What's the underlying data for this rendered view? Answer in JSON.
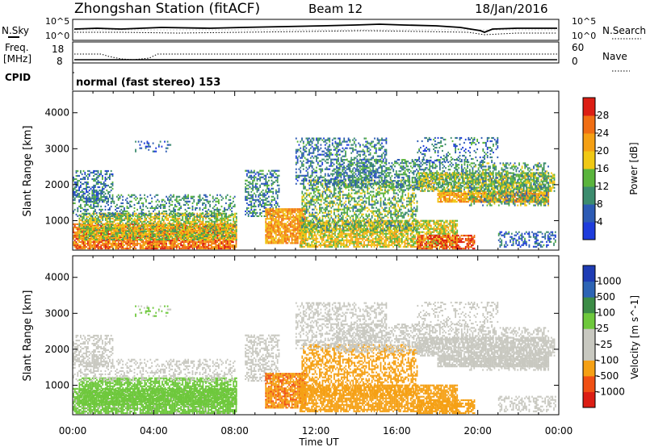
{
  "header": {
    "title": "Zhongshan Station (fitACF)",
    "beam": "Beam 12",
    "date": "18/Jan/2016"
  },
  "noise_panel": {
    "left_label": "N.Sky",
    "left_ticks": [
      "10^5",
      "10^0"
    ],
    "right_label": "N.Search",
    "right_ticks": [
      "10^5",
      "10^0"
    ]
  },
  "freq_panel": {
    "left_label_line1": "Freq.",
    "left_label_line2": "[MHz]",
    "left_ticks": [
      "18",
      "8"
    ],
    "right_label": "Nave",
    "right_ticks": [
      "60",
      "0"
    ]
  },
  "cpid_panel": {
    "label": "CPID",
    "text": "normal (fast stereo) 153"
  },
  "colors": {
    "power": [
      "#1e3cdc",
      "#2d5bb4",
      "#3c8c6e",
      "#5ab43c",
      "#f0c814",
      "#f5a014",
      "#f06e14",
      "#dc1e14"
    ],
    "velocity": [
      "#dc1e14",
      "#f05014",
      "#f5a014",
      "#c8c8c0",
      "#c8c8c0",
      "#6ec83c",
      "#3c8c46",
      "#2d64b4",
      "#1e3cb4"
    ]
  },
  "chart_data": [
    {
      "type": "heatmap",
      "panel": "power",
      "ylabel": "Slant Range [km]",
      "yticks": [
        1000,
        2000,
        3000,
        4000
      ],
      "ylim": [
        180,
        4600
      ],
      "xlim_hours": [
        0,
        24
      ],
      "colorbar_label": "Power [dB]",
      "colorbar_ticks": [
        "4",
        "8",
        "12",
        "16",
        "20",
        "24",
        "28"
      ],
      "colorbar_range": [
        0,
        32
      ]
    },
    {
      "type": "heatmap",
      "panel": "velocity",
      "ylabel": "Slant Range [km]",
      "yticks": [
        1000,
        2000,
        3000,
        4000
      ],
      "ylim": [
        180,
        4600
      ],
      "xlim_hours": [
        0,
        24
      ],
      "colorbar_label": "Velocity [m s^-1]",
      "colorbar_ticks": [
        "1000",
        "500",
        "100",
        "25",
        "-25",
        "-100",
        "-500",
        "-1000"
      ]
    }
  ],
  "x_axis": {
    "tick_labels": [
      "00:00",
      "04:00",
      "08:00",
      "12:00",
      "16:00",
      "20:00",
      "00:00"
    ],
    "label": "Time UT"
  }
}
